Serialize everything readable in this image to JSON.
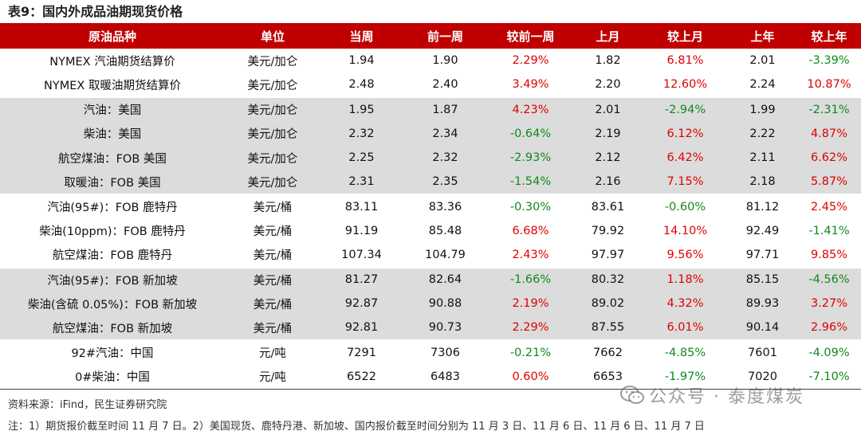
{
  "title": "表9：国内外成品油期现货价格",
  "headers": [
    "原油品种",
    "单位",
    "当周",
    "前一周",
    "较前一周",
    "上月",
    "较上月",
    "上年",
    "较上年"
  ],
  "rows": [
    {
      "cells": [
        "NYMEX 汽油期货结算价",
        "美元/加仑",
        "1.94",
        "1.90",
        "2.29%",
        "1.82",
        "6.81%",
        "2.01",
        "-3.39%"
      ],
      "group": "plain"
    },
    {
      "cells": [
        "NYMEX 取暖油期货结算价",
        "美元/加仑",
        "2.48",
        "2.40",
        "3.49%",
        "2.20",
        "12.60%",
        "2.24",
        "10.87%"
      ],
      "group": "plain"
    },
    {
      "cells": [
        "汽油：美国",
        "美元/加仑",
        "1.95",
        "1.87",
        "4.23%",
        "2.01",
        "-2.94%",
        "1.99",
        "-2.31%"
      ],
      "group": "shade",
      "sep": true
    },
    {
      "cells": [
        "柴油：美国",
        "美元/加仑",
        "2.32",
        "2.34",
        "-0.64%",
        "2.19",
        "6.12%",
        "2.22",
        "4.87%"
      ],
      "group": "shade"
    },
    {
      "cells": [
        "航空煤油：FOB 美国",
        "美元/加仑",
        "2.25",
        "2.32",
        "-2.93%",
        "2.12",
        "6.42%",
        "2.11",
        "6.62%"
      ],
      "group": "shade"
    },
    {
      "cells": [
        "取暖油：FOB 美国",
        "美元/加仑",
        "2.31",
        "2.35",
        "-1.54%",
        "2.16",
        "7.15%",
        "2.18",
        "5.87%"
      ],
      "group": "shade"
    },
    {
      "cells": [
        "汽油(95#)：FOB 鹿特丹",
        "美元/桶",
        "83.11",
        "83.36",
        "-0.30%",
        "83.61",
        "-0.60%",
        "81.12",
        "2.45%"
      ],
      "group": "plain",
      "sep": true
    },
    {
      "cells": [
        "柴油(10ppm)：FOB 鹿特丹",
        "美元/桶",
        "91.19",
        "85.48",
        "6.68%",
        "79.92",
        "14.10%",
        "92.49",
        "-1.41%"
      ],
      "group": "plain"
    },
    {
      "cells": [
        "航空煤油：FOB 鹿特丹",
        "美元/桶",
        "107.34",
        "104.79",
        "2.43%",
        "97.97",
        "9.56%",
        "97.71",
        "9.85%"
      ],
      "group": "plain"
    },
    {
      "cells": [
        "汽油(95#)：FOB 新加坡",
        "美元/桶",
        "81.27",
        "82.64",
        "-1.66%",
        "80.32",
        "1.18%",
        "85.15",
        "-4.56%"
      ],
      "group": "shade",
      "sep": true
    },
    {
      "cells": [
        "柴油(含硫 0.05%)：FOB 新加坡",
        "美元/桶",
        "92.87",
        "90.88",
        "2.19%",
        "89.02",
        "4.32%",
        "89.93",
        "3.27%"
      ],
      "group": "shade"
    },
    {
      "cells": [
        "航空煤油：FOB 新加坡",
        "美元/桶",
        "92.81",
        "90.73",
        "2.29%",
        "87.55",
        "6.01%",
        "90.14",
        "2.96%"
      ],
      "group": "shade"
    },
    {
      "cells": [
        "92#汽油：中国",
        "元/吨",
        "7291",
        "7306",
        "-0.21%",
        "7662",
        "-4.85%",
        "7601",
        "-4.09%"
      ],
      "group": "plain",
      "sep": true
    },
    {
      "cells": [
        "0#柴油：中国",
        "元/吨",
        "6522",
        "6483",
        "0.60%",
        "6653",
        "-1.97%",
        "7020",
        "-7.10%"
      ],
      "group": "plain",
      "bottom": true
    }
  ],
  "source": "资料来源：iFind，民生证券研究院",
  "note": "注：1）期货报价截至时间 11 月 7 日。2）美国现货、鹿特丹港、新加坡、国内报价截至时间分别为 11 月 3 日、11 月 6 日、11 月 6 日、11 月 7 日",
  "watermark": "公众号 · 泰度煤炭",
  "colors": {
    "header_bg": "#c00000",
    "positive": "#e00000",
    "negative": "#0e8a1a",
    "shade": "#dcdcdc"
  }
}
